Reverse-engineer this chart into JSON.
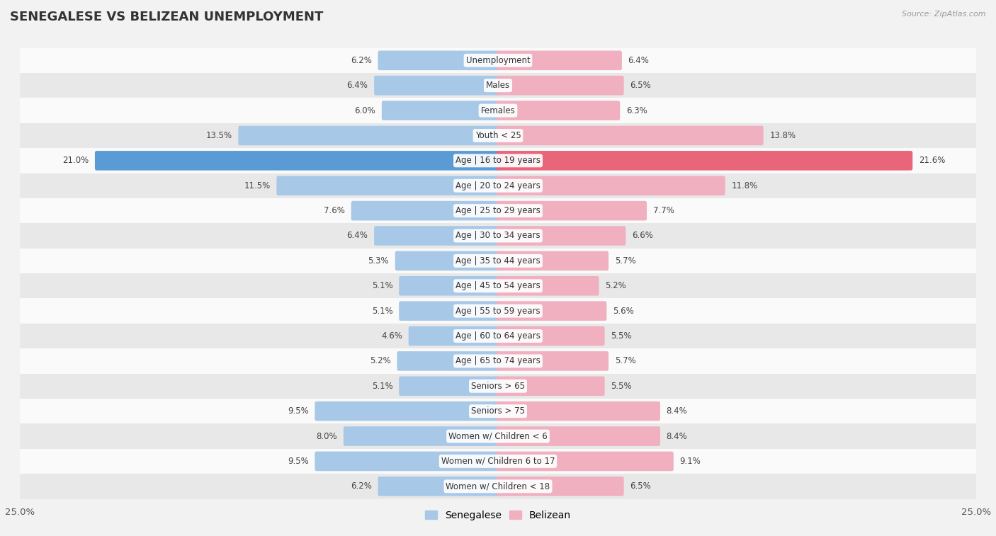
{
  "title": "SENEGALESE VS BELIZEAN UNEMPLOYMENT",
  "source": "Source: ZipAtlas.com",
  "categories": [
    "Unemployment",
    "Males",
    "Females",
    "Youth < 25",
    "Age | 16 to 19 years",
    "Age | 20 to 24 years",
    "Age | 25 to 29 years",
    "Age | 30 to 34 years",
    "Age | 35 to 44 years",
    "Age | 45 to 54 years",
    "Age | 55 to 59 years",
    "Age | 60 to 64 years",
    "Age | 65 to 74 years",
    "Seniors > 65",
    "Seniors > 75",
    "Women w/ Children < 6",
    "Women w/ Children 6 to 17",
    "Women w/ Children < 18"
  ],
  "senegalese": [
    6.2,
    6.4,
    6.0,
    13.5,
    21.0,
    11.5,
    7.6,
    6.4,
    5.3,
    5.1,
    5.1,
    4.6,
    5.2,
    5.1,
    9.5,
    8.0,
    9.5,
    6.2
  ],
  "belizean": [
    6.4,
    6.5,
    6.3,
    13.8,
    21.6,
    11.8,
    7.7,
    6.6,
    5.7,
    5.2,
    5.6,
    5.5,
    5.7,
    5.5,
    8.4,
    8.4,
    9.1,
    6.5
  ],
  "senegalese_color": "#a8c8e8",
  "belizean_color": "#f0b0c0",
  "highlight_senegalese_color": "#5b9bd5",
  "highlight_belizean_color": "#e8657a",
  "axis_max": 25.0,
  "bar_height": 0.62,
  "bg_color": "#f2f2f2",
  "row_color_light": "#fafafa",
  "row_color_dark": "#e8e8e8",
  "legend_senegalese": "Senegalese",
  "legend_belizean": "Belizean",
  "highlight_rows": [
    4
  ],
  "label_fontsize": 8.5,
  "title_fontsize": 13
}
